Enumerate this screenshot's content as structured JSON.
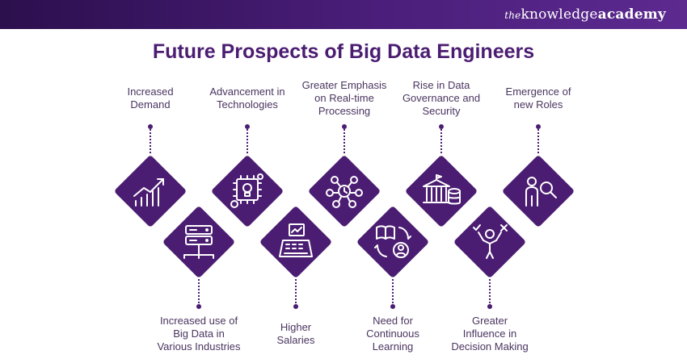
{
  "brand": {
    "prefix": "the",
    "word1": "knowledge",
    "word2": "academy"
  },
  "title": "Future Prospects of Big Data Engineers",
  "top_items": [
    {
      "label_lines": [
        "Increased",
        "Demand"
      ],
      "icon": "growth-chart-icon"
    },
    {
      "label_lines": [
        "Advancement in",
        "Technologies"
      ],
      "icon": "chip-gear-icon"
    },
    {
      "label_lines": [
        "Greater Emphasis",
        "on Real-time",
        "Processing"
      ],
      "icon": "network-clock-icon"
    },
    {
      "label_lines": [
        "Rise in Data",
        "Governance and",
        "Security"
      ],
      "icon": "government-database-icon"
    },
    {
      "label_lines": [
        "Emergence of",
        "new Roles"
      ],
      "icon": "person-search-icon"
    }
  ],
  "bottom_items": [
    {
      "label_lines": [
        "Increased use of",
        "Big Data in",
        "Various Industries"
      ],
      "icon": "servers-icon"
    },
    {
      "label_lines": [
        "Higher",
        "Salaries"
      ],
      "icon": "cash-register-icon"
    },
    {
      "label_lines": [
        "Need for",
        "Continuous",
        "Learning"
      ],
      "icon": "book-person-cycle-icon"
    },
    {
      "label_lines": [
        "Greater",
        "Influence in",
        "Decision Making"
      ],
      "icon": "person-decision-icon"
    }
  ],
  "colors": {
    "primary": "#4b1d72",
    "label_text": "#4a3560",
    "header_start": "#2c0f4d",
    "header_end": "#5d2a90"
  }
}
